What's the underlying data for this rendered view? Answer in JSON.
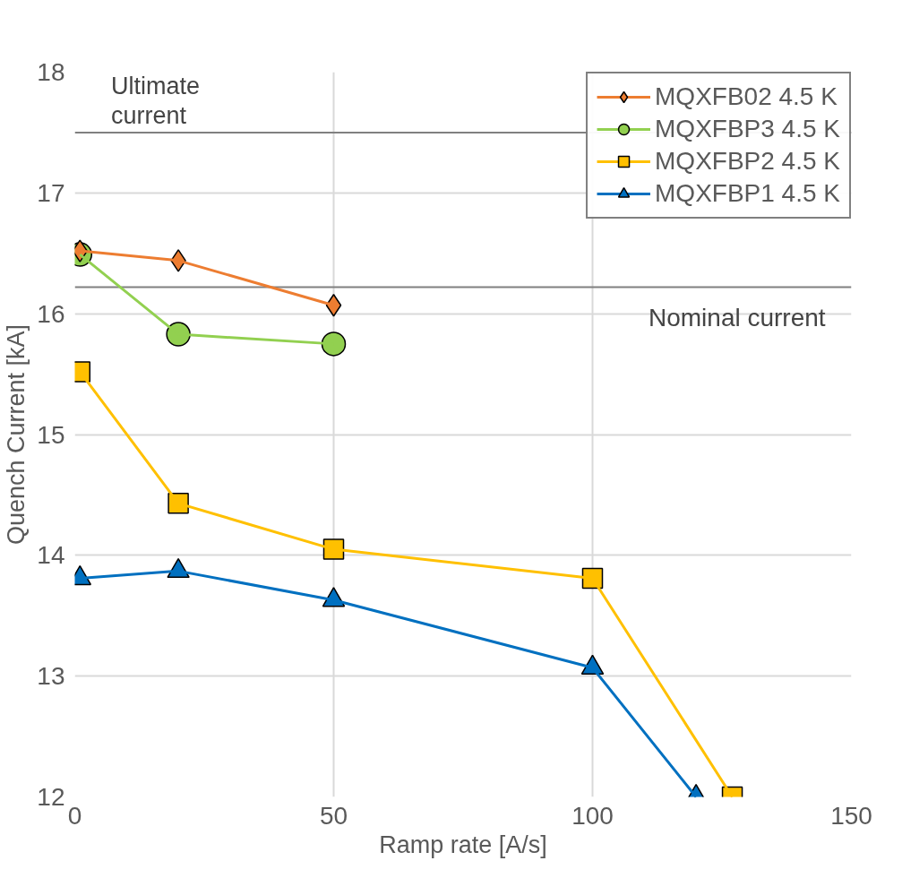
{
  "chart_data": {
    "type": "line",
    "xlabel": "Ramp rate [A/s]",
    "ylabel": "Quench Current [kA]",
    "xlim": [
      0,
      150
    ],
    "ylim": [
      12,
      18
    ],
    "xticks": [
      0,
      50,
      100,
      150
    ],
    "yticks": [
      12,
      13,
      14,
      15,
      16,
      17,
      18
    ],
    "grid": true,
    "legend": "top right",
    "series": [
      {
        "name": "MQXFB02 4.5 K",
        "color": "#ed7d31",
        "marker": "diamond",
        "x": [
          1,
          20,
          50
        ],
        "values": [
          16.52,
          16.44,
          16.07
        ]
      },
      {
        "name": "MQXFBP3 4.5 K",
        "color": "#92d050",
        "marker": "circle",
        "x": [
          1,
          20,
          50
        ],
        "values": [
          16.49,
          15.83,
          15.75
        ]
      },
      {
        "name": "MQXFBP2 4.5 K",
        "color": "#ffc000",
        "marker": "square",
        "x": [
          1,
          20,
          50,
          100,
          127
        ],
        "values": [
          15.52,
          14.43,
          14.05,
          13.81,
          12
        ]
      },
      {
        "name": "MQXFBP1 4.5 K",
        "color": "#0070c0",
        "marker": "triangle",
        "x": [
          1,
          20,
          50,
          100,
          120
        ],
        "values": [
          13.81,
          13.87,
          13.63,
          13.07,
          12
        ]
      }
    ],
    "ref_lines": [
      {
        "axis": "y",
        "value": 17.5,
        "label": "Ultimate\ncurrent",
        "color": "#808080"
      },
      {
        "axis": "y",
        "value": 16.22,
        "label": "Nominal current",
        "color": "#808080"
      }
    ]
  }
}
